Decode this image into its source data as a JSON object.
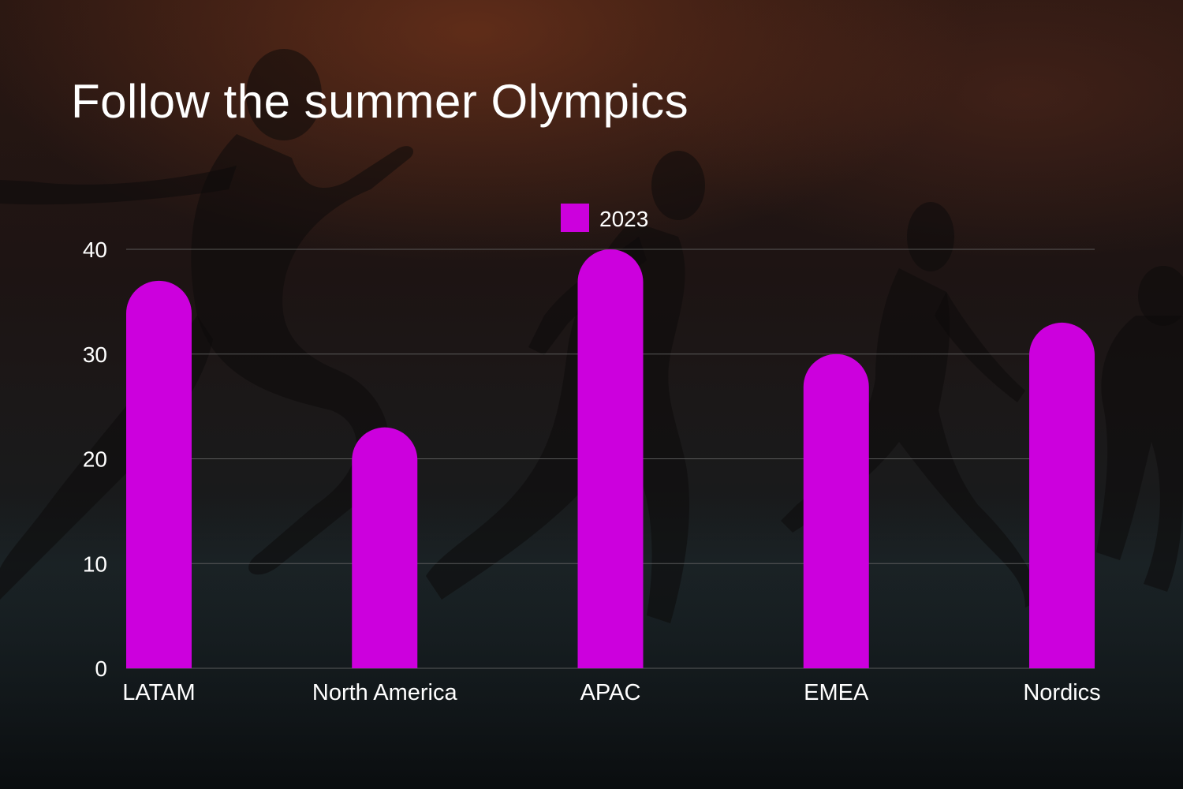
{
  "slide": {
    "title": "Follow the summer Olympics"
  },
  "background": {
    "description_icon": "runners-silhouette-photo"
  },
  "colors": {
    "bar": "#cc00dd",
    "text": "#ffffff",
    "grid": "#6a6a6a"
  },
  "chart_data": {
    "type": "bar",
    "categories": [
      "LATAM",
      "North America",
      "APAC",
      "EMEA",
      "Nordics"
    ],
    "series": [
      {
        "name": "2023",
        "values": [
          37,
          23,
          40,
          30,
          33
        ]
      }
    ],
    "ylim": [
      0,
      40
    ],
    "yticks": [
      0,
      10,
      20,
      30,
      40
    ],
    "grid": true,
    "legend": "top-center"
  }
}
